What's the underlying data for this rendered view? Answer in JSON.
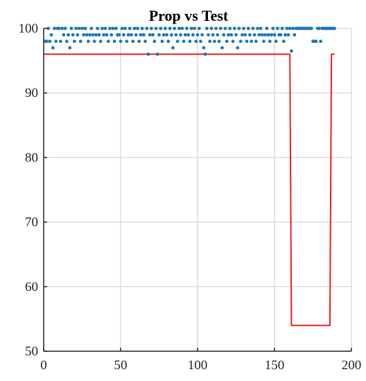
{
  "chart_data": {
    "type": "scatter",
    "title": "Prop vs Test",
    "xlabel": "",
    "ylabel": "",
    "xlim": [
      0,
      200
    ],
    "ylim": [
      50,
      100
    ],
    "xticks": [
      0,
      50,
      100,
      150,
      200
    ],
    "yticks": [
      50,
      60,
      70,
      80,
      90,
      100
    ],
    "grid": true,
    "legend": "none",
    "colors": {
      "points": "#1f77b4",
      "line": "#e8201c"
    },
    "series": [
      {
        "type": "scatter",
        "points": [
          [
            1,
            98
          ],
          [
            2,
            98
          ],
          [
            3,
            100
          ],
          [
            4,
            98
          ],
          [
            5,
            99
          ],
          [
            6,
            97
          ],
          [
            7,
            100
          ],
          [
            8,
            98
          ],
          [
            9,
            100
          ],
          [
            10,
            100
          ],
          [
            11,
            98
          ],
          [
            12,
            100
          ],
          [
            13,
            99
          ],
          [
            14,
            100
          ],
          [
            15,
            98
          ],
          [
            16,
            99
          ],
          [
            17,
            97
          ],
          [
            18,
            100
          ],
          [
            19,
            99
          ],
          [
            20,
            98
          ],
          [
            21,
            100
          ],
          [
            22,
            99
          ],
          [
            23,
            100
          ],
          [
            24,
            98
          ],
          [
            25,
            100
          ],
          [
            26,
            99
          ],
          [
            27,
            100
          ],
          [
            28,
            99
          ],
          [
            29,
            98
          ],
          [
            30,
            99
          ],
          [
            31,
            100
          ],
          [
            32,
            99
          ],
          [
            33,
            98
          ],
          [
            34,
            99
          ],
          [
            35,
            100
          ],
          [
            36,
            99
          ],
          [
            37,
            98
          ],
          [
            38,
            100
          ],
          [
            39,
            99
          ],
          [
            40,
            100
          ],
          [
            41,
            99
          ],
          [
            42,
            98
          ],
          [
            43,
            100
          ],
          [
            44,
            99
          ],
          [
            45,
            100
          ],
          [
            46,
            98
          ],
          [
            47,
            100
          ],
          [
            48,
            99
          ],
          [
            49,
            99
          ],
          [
            50,
            98
          ],
          [
            51,
            100
          ],
          [
            52,
            99
          ],
          [
            53,
            100
          ],
          [
            54,
            98
          ],
          [
            55,
            99
          ],
          [
            56,
            100
          ],
          [
            57,
            99
          ],
          [
            58,
            98
          ],
          [
            59,
            100
          ],
          [
            60,
            99
          ],
          [
            61,
            100
          ],
          [
            62,
            98
          ],
          [
            63,
            99
          ],
          [
            64,
            100
          ],
          [
            65,
            99
          ],
          [
            66,
            98
          ],
          [
            67,
            100
          ],
          [
            68,
            96
          ],
          [
            69,
            99
          ],
          [
            70,
            100
          ],
          [
            71,
            99
          ],
          [
            72,
            98
          ],
          [
            73,
            100
          ],
          [
            74,
            96
          ],
          [
            75,
            99
          ],
          [
            76,
            100
          ],
          [
            77,
            98
          ],
          [
            78,
            99
          ],
          [
            79,
            100
          ],
          [
            80,
            99
          ],
          [
            81,
            98
          ],
          [
            82,
            100
          ],
          [
            83,
            99
          ],
          [
            84,
            97
          ],
          [
            85,
            100
          ],
          [
            86,
            99
          ],
          [
            87,
            98
          ],
          [
            88,
            100
          ],
          [
            89,
            99
          ],
          [
            90,
            100
          ],
          [
            91,
            98
          ],
          [
            92,
            99
          ],
          [
            93,
            100
          ],
          [
            94,
            99
          ],
          [
            95,
            98
          ],
          [
            96,
            100
          ],
          [
            97,
            99
          ],
          [
            98,
            100
          ],
          [
            99,
            98
          ],
          [
            100,
            99
          ],
          [
            101,
            100
          ],
          [
            102,
            98
          ],
          [
            103,
            99
          ],
          [
            104,
            97
          ],
          [
            105,
            96
          ],
          [
            106,
            100
          ],
          [
            107,
            99
          ],
          [
            108,
            98
          ],
          [
            109,
            100
          ],
          [
            110,
            99
          ],
          [
            111,
            98
          ],
          [
            112,
            100
          ],
          [
            113,
            99
          ],
          [
            114,
            98
          ],
          [
            115,
            100
          ],
          [
            116,
            97
          ],
          [
            117,
            99
          ],
          [
            118,
            100
          ],
          [
            119,
            98
          ],
          [
            120,
            99
          ],
          [
            121,
            100
          ],
          [
            122,
            99
          ],
          [
            123,
            98
          ],
          [
            124,
            100
          ],
          [
            125,
            99
          ],
          [
            126,
            97
          ],
          [
            127,
            100
          ],
          [
            128,
            98
          ],
          [
            129,
            99
          ],
          [
            130,
            100
          ],
          [
            131,
            99
          ],
          [
            132,
            98
          ],
          [
            133,
            100
          ],
          [
            134,
            99
          ],
          [
            135,
            98
          ],
          [
            136,
            100
          ],
          [
            137,
            99
          ],
          [
            138,
            98
          ],
          [
            139,
            100
          ],
          [
            140,
            99
          ],
          [
            141,
            100
          ],
          [
            142,
            99
          ],
          [
            143,
            98
          ],
          [
            144,
            99
          ],
          [
            145,
            100
          ],
          [
            146,
            99
          ],
          [
            147,
            98
          ],
          [
            148,
            99
          ],
          [
            149,
            100
          ],
          [
            150,
            99
          ],
          [
            151,
            98
          ],
          [
            152,
            100
          ],
          [
            153,
            99
          ],
          [
            154,
            99
          ],
          [
            155,
            100
          ],
          [
            156,
            98
          ],
          [
            157,
            99
          ],
          [
            158,
            100
          ],
          [
            159,
            99
          ],
          [
            160,
            100
          ],
          [
            161,
            96.5
          ],
          [
            162,
            100
          ],
          [
            163,
            99
          ],
          [
            164,
            100
          ],
          [
            165,
            100
          ],
          [
            166,
            100
          ],
          [
            167,
            100
          ],
          [
            168,
            100
          ],
          [
            169,
            100
          ],
          [
            170,
            100
          ],
          [
            171,
            100
          ],
          [
            172,
            100
          ],
          [
            173,
            100
          ],
          [
            174,
            100
          ],
          [
            175,
            98
          ],
          [
            176,
            98
          ],
          [
            177,
            98
          ],
          [
            178,
            100
          ],
          [
            179,
            100
          ],
          [
            180,
            98
          ],
          [
            181,
            100
          ],
          [
            182,
            100
          ],
          [
            183,
            100
          ],
          [
            184,
            100
          ],
          [
            185,
            100
          ],
          [
            186,
            100
          ],
          [
            187,
            100
          ],
          [
            188,
            100
          ],
          [
            189,
            100
          ]
        ]
      },
      {
        "type": "line",
        "points": [
          [
            0,
            96
          ],
          [
            160,
            96
          ],
          [
            161,
            54
          ],
          [
            186,
            54
          ],
          [
            187,
            96
          ],
          [
            189,
            96
          ]
        ]
      }
    ]
  }
}
